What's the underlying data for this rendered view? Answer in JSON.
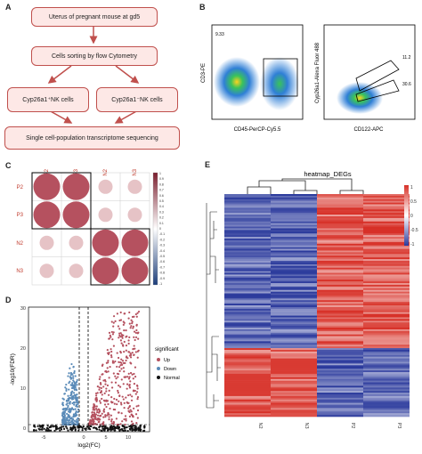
{
  "panels": {
    "a": "A",
    "b": "B",
    "c": "C",
    "d": "D",
    "e": "E"
  },
  "flow": {
    "box1": "Uterus of pregnant mouse at gd5",
    "box2": "Cells sorting by flow Cytometry",
    "box3": "Cyp26a1⁺NK cells",
    "box4": "Cyp26a1⁻NK cells",
    "box5": "Single cell-population transcriptome sequencing"
  },
  "flow_cytometry": {
    "left": {
      "xlabel": "CD45-PerCP-Cy5.5",
      "ylabel": "CD3-PE",
      "gate_value": "9.33"
    },
    "right": {
      "xlabel": "CD122-APC",
      "ylabel": "Cyp26a1-Alexa Fluor 488",
      "gate_upper": "11.2",
      "gate_lower": "30.6"
    }
  },
  "correlation": {
    "samples_top": [
      "P2",
      "P3",
      "N2",
      "N3"
    ],
    "samples_left": [
      "P2",
      "P3",
      "N2",
      "N3"
    ],
    "scale_ticks": [
      "1",
      "0.9",
      "0.8",
      "0.7",
      "0.6",
      "0.5",
      "0.4",
      "0.3",
      "0.2",
      "0.1",
      "0",
      "-0.1",
      "-0.2",
      "-0.3",
      "-0.4",
      "-0.5",
      "-0.6",
      "-0.7",
      "-0.8",
      "-0.9",
      "-1"
    ]
  },
  "volcano": {
    "xlabel": "log2(FC)",
    "ylabel": "-log10(FDR)",
    "x_ticks": [
      "-5",
      "0",
      "5",
      "10"
    ],
    "y_ticks": [
      "0",
      "10",
      "20",
      "30"
    ],
    "legend_title": "significant",
    "legend": [
      {
        "name": "Up",
        "color": "#b5515f"
      },
      {
        "name": "Down",
        "color": "#5b8bb8"
      },
      {
        "name": "Normal",
        "color": "#111111"
      }
    ]
  },
  "heatmap": {
    "title": "heatmap_DEGs",
    "columns": [
      "N2",
      "N3",
      "P2",
      "P3"
    ],
    "scale_ticks": [
      "1",
      "0.5",
      "0",
      "-0.5",
      "-1"
    ]
  },
  "colors": {
    "flow_border": "#c0504d",
    "flow_fill": "#fde8e6",
    "corr": "#b5515f",
    "heat_high": "#d73027",
    "heat_low": "#2b3a9c"
  }
}
